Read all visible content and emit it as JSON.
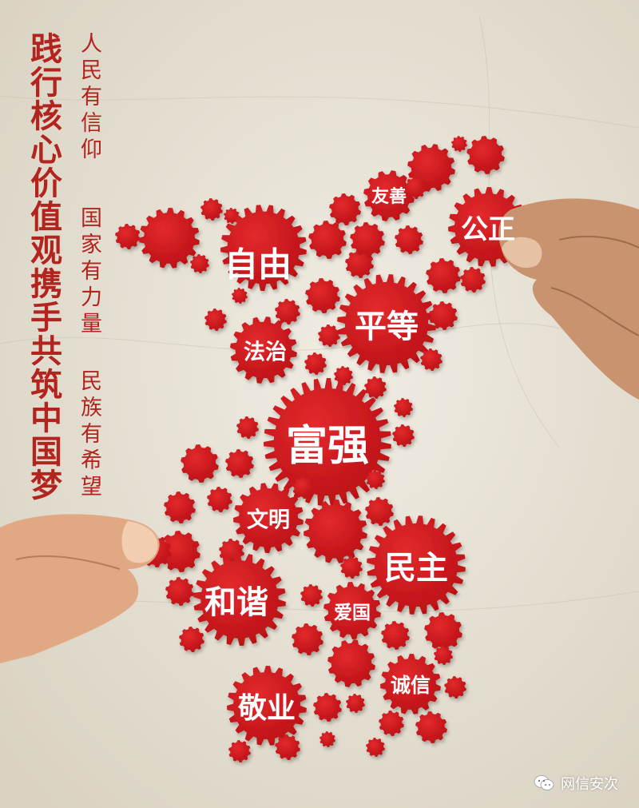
{
  "slogan": {
    "main": "践行核心价值观携手共筑中国梦",
    "line1": "人民有信仰",
    "line2": "国家有力量",
    "line3": "民族有希望"
  },
  "values": {
    "youshan": "友善",
    "gongzheng": "公正",
    "ziyou": "自由",
    "pingdeng": "平等",
    "fazhi": "法治",
    "fuqiang": "富强",
    "wenming": "文明",
    "minzhu": "民主",
    "hexie": "和谐",
    "aiguo": "爱国",
    "chengxin": "诚信",
    "jingye": "敬业"
  },
  "watermark": {
    "text": "网信安次",
    "icon": "wechat-icon"
  },
  "colors": {
    "gear": "#d0161d",
    "gear_dark": "#a80f14",
    "paper": "#e9e4d8",
    "calligraphy": "#b3241f"
  }
}
